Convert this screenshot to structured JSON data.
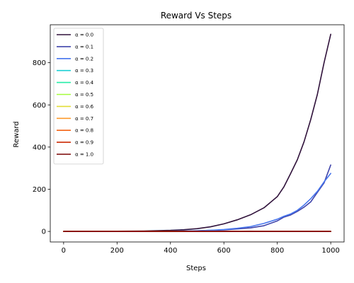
{
  "chart_data": {
    "type": "line",
    "title": "Reward Vs Steps",
    "xlabel": "Steps",
    "ylabel": "Reward",
    "xlim": [
      -50,
      1050
    ],
    "ylim": [
      -50,
      980
    ],
    "xticks": [
      0,
      200,
      400,
      600,
      800,
      1000
    ],
    "yticks": [
      0,
      200,
      400,
      600,
      800
    ],
    "legend_position": "top-left",
    "grid": false,
    "x": [
      0,
      100,
      200,
      300,
      400,
      450,
      500,
      550,
      600,
      650,
      700,
      750,
      800,
      825,
      850,
      875,
      900,
      925,
      950,
      975,
      1000
    ],
    "series": [
      {
        "name": "α = 0.0",
        "color": "#30123b",
        "values": [
          0,
          0.5,
          1,
          2,
          5,
          8,
          13,
          22,
          36,
          55,
          79,
          112,
          165,
          212,
          275,
          340,
          425,
          530,
          650,
          800,
          935
        ]
      },
      {
        "name": "α = 0.1",
        "color": "#4145ab",
        "values": [
          0,
          0,
          0,
          0.5,
          1,
          2,
          3,
          5,
          7,
          12,
          17,
          27,
          50,
          68,
          78,
          95,
          115,
          140,
          185,
          230,
          315
        ]
      },
      {
        "name": "α = 0.2",
        "color": "#4675ed",
        "values": [
          0,
          0,
          0,
          0.5,
          1,
          2,
          3,
          5,
          9,
          15,
          23,
          38,
          58,
          72,
          83,
          100,
          125,
          155,
          190,
          235,
          275
        ]
      },
      {
        "name": "α = 0.3",
        "color": "#1bcfd4",
        "values": [
          0,
          0,
          0,
          0,
          0,
          0,
          0,
          0,
          0,
          0,
          0,
          0,
          0,
          0,
          0,
          0,
          0,
          0,
          0,
          0,
          0
        ]
      },
      {
        "name": "α = 0.4",
        "color": "#24eca6",
        "values": [
          0,
          0,
          0,
          0,
          0,
          0,
          0,
          0,
          0,
          0,
          0,
          0,
          0,
          0,
          0,
          0,
          0,
          0,
          0,
          0,
          0
        ]
      },
      {
        "name": "α = 0.5",
        "color": "#a4fc3c",
        "values": [
          0,
          0,
          0,
          0,
          0,
          0,
          0,
          0,
          0,
          0,
          0,
          0,
          0,
          0,
          0,
          0,
          0,
          0,
          0,
          0,
          0
        ]
      },
      {
        "name": "α = 0.6",
        "color": "#e1dd37",
        "values": [
          0,
          0,
          0,
          0,
          0,
          0,
          0,
          0,
          0,
          0,
          0,
          0,
          0,
          0,
          0,
          0,
          0,
          0,
          0,
          0,
          0
        ]
      },
      {
        "name": "α = 0.7",
        "color": "#fe9b2d",
        "values": [
          0,
          0,
          0,
          0,
          0,
          0,
          0,
          0,
          0,
          0,
          0,
          0,
          0,
          0,
          0,
          0,
          0,
          0,
          0,
          0,
          0
        ]
      },
      {
        "name": "α = 0.8",
        "color": "#f36315",
        "values": [
          0,
          0,
          0,
          0,
          0,
          0,
          0,
          0,
          0,
          0,
          0,
          0,
          0,
          0,
          0,
          0,
          0,
          0,
          0,
          0,
          0
        ]
      },
      {
        "name": "α = 0.9",
        "color": "#cb2a04",
        "values": [
          0,
          0,
          0,
          0,
          0,
          0,
          0,
          0,
          0,
          0,
          0,
          0,
          0,
          0,
          0,
          0,
          0,
          0,
          0,
          0,
          0
        ]
      },
      {
        "name": "α = 1.0",
        "color": "#7a0403",
        "values": [
          0,
          0,
          0,
          0,
          0,
          0,
          0,
          0,
          0,
          0,
          0,
          0,
          0,
          0,
          0,
          0,
          0,
          0,
          0,
          0,
          0
        ]
      }
    ]
  }
}
